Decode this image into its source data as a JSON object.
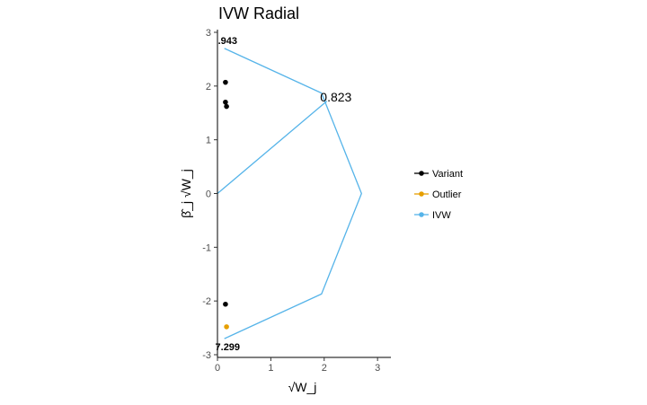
{
  "chart_data": {
    "type": "scatter",
    "title": "IVW Radial",
    "xlabel": "√W_j",
    "ylabel": "β̂_j √W_j",
    "xlim": [
      0,
      3.25
    ],
    "ylim": [
      -3.05,
      3.05
    ],
    "x_ticks": [
      "0",
      "1",
      "2",
      "3"
    ],
    "y_ticks": [
      "-3",
      "-2",
      "-1",
      "0",
      "1",
      "2",
      "3"
    ],
    "grid": false,
    "legend_position": "right",
    "colors": {
      "variant": "#000000",
      "outlier": "#E69F00",
      "ivw": "#56B4E9"
    },
    "legend": [
      {
        "label": "Variant",
        "color": "#000000"
      },
      {
        "label": "Outlier",
        "color": "#E69F00"
      },
      {
        "label": "IVW",
        "color": "#56B4E9"
      }
    ],
    "series": [
      {
        "name": "Variant",
        "points": [
          [
            0.15,
            2.07
          ],
          [
            0.15,
            1.7
          ],
          [
            0.17,
            1.62
          ],
          [
            0.15,
            -2.06
          ]
        ]
      },
      {
        "name": "Outlier",
        "points": [
          [
            0.17,
            -2.48
          ]
        ]
      },
      {
        "name": "IVW",
        "lines": [
          [
            [
              0.0,
              0.0
            ],
            [
              2.05,
              1.72
            ]
          ],
          [
            [
              0.13,
              2.7
            ],
            [
              1.95,
              1.87
            ],
            [
              2.7,
              0.0
            ],
            [
              1.95,
              -1.87
            ],
            [
              0.13,
              -2.7
            ]
          ]
        ]
      }
    ],
    "annotations": [
      {
        "text": ".943",
        "x": 0.19,
        "y": 2.85,
        "size": "small"
      },
      {
        "text": "0.823",
        "x": 2.22,
        "y": 1.8,
        "size": "big"
      },
      {
        "text": "7.299",
        "x": 0.19,
        "y": -2.85,
        "size": "small"
      }
    ]
  }
}
